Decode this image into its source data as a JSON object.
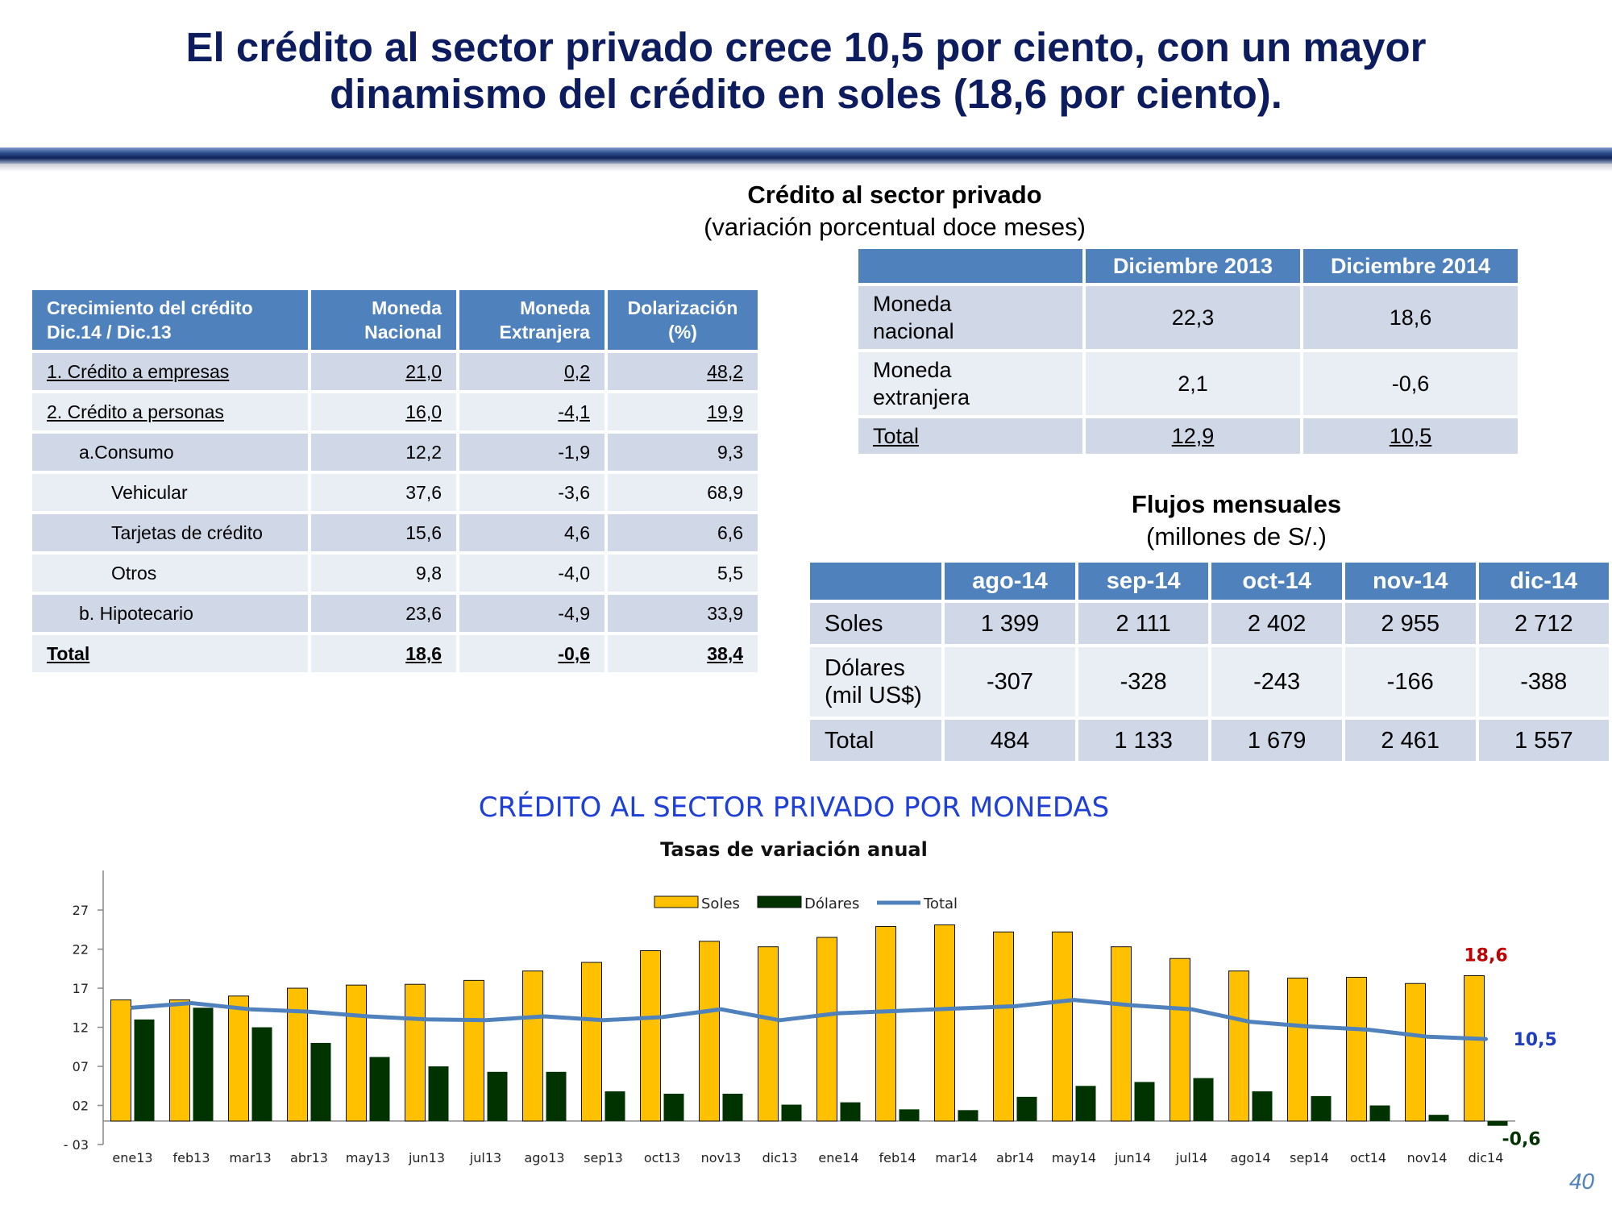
{
  "title": {
    "line1": "El crédito al sector privado crece 10,5 por ciento, con un mayor",
    "line2": "dinamismo del crédito en soles (18,6 por ciento)."
  },
  "growth_table": {
    "headers": [
      "Crecimiento del crédito\nDic.14 / Dic.13",
      "Moneda\nNacional",
      "Moneda\nExtranjera",
      "Dolarización\n(%)"
    ],
    "rows": [
      {
        "label": "1. Crédito a empresas",
        "mn": "21,0",
        "me": "0,2",
        "dol": "48,2"
      },
      {
        "label": "2. Crédito a personas",
        "mn": "16,0",
        "me": "-4,1",
        "dol": "19,9"
      },
      {
        "label": "a.Consumo",
        "mn": "12,2",
        "me": "-1,9",
        "dol": "9,3"
      },
      {
        "label": "Vehicular",
        "mn": "37,6",
        "me": "-3,6",
        "dol": "68,9"
      },
      {
        "label": "Tarjetas de crédito",
        "mn": "15,6",
        "me": "4,6",
        "dol": "6,6"
      },
      {
        "label": "Otros",
        "mn": "9,8",
        "me": "-4,0",
        "dol": "5,5"
      },
      {
        "label": "b. Hipotecario",
        "mn": "23,6",
        "me": "-4,9",
        "dol": "33,9"
      },
      {
        "label": "Total",
        "mn": "18,6",
        "me": "-0,6",
        "dol": "38,4"
      }
    ]
  },
  "rate_table": {
    "title": "Crédito al sector privado",
    "subtitle": "(variación porcentual doce meses)",
    "headers": [
      "",
      "Diciembre 2013",
      "Diciembre 2014"
    ],
    "rows": [
      {
        "label": "Moneda\nnacional",
        "v1": "22,3",
        "v2": "18,6"
      },
      {
        "label": "Moneda\nextranjera",
        "v1": "2,1",
        "v2": "-0,6"
      },
      {
        "label": "Total",
        "v1": "12,9",
        "v2": "10,5"
      }
    ]
  },
  "flow_table": {
    "title": "Flujos mensuales",
    "subtitle": "(millones de S/.)",
    "headers": [
      "",
      "ago-14",
      "sep-14",
      "oct-14",
      "nov-14",
      "dic-14"
    ],
    "rows": [
      {
        "label": "Soles",
        "values": [
          "1 399",
          "2 111",
          "2 402",
          "2 955",
          "2 712"
        ]
      },
      {
        "label": "Dólares\n(mil US$)",
        "values": [
          "-307",
          "-328",
          "-243",
          "-166",
          "-388"
        ]
      },
      {
        "label": "Total",
        "values": [
          "484",
          "1 133",
          "1 679",
          "2 461",
          "1 557"
        ]
      }
    ]
  },
  "chart_data": {
    "type": "bar",
    "title": "CRÉDITO AL SECTOR PRIVADO POR MONEDAS",
    "subtitle": "Tasas de variación anual",
    "categories": [
      "ene13",
      "feb13",
      "mar13",
      "abr13",
      "may13",
      "jun13",
      "jul13",
      "ago13",
      "sep13",
      "oct13",
      "nov13",
      "dic13",
      "ene14",
      "feb14",
      "mar14",
      "abr14",
      "may14",
      "jun14",
      "jul14",
      "ago14",
      "sep14",
      "oct14",
      "nov14",
      "dic14"
    ],
    "series": [
      {
        "name": "Soles",
        "type": "bar",
        "color": "#ffc000",
        "values": [
          15.5,
          15.5,
          16.0,
          17.0,
          17.4,
          17.5,
          18.0,
          19.2,
          20.3,
          21.8,
          23.0,
          22.3,
          23.5,
          24.9,
          25.1,
          24.2,
          24.2,
          22.3,
          20.8,
          19.2,
          18.3,
          18.4,
          17.6,
          18.6
        ]
      },
      {
        "name": "Dólares",
        "type": "bar",
        "color": "#003300",
        "values": [
          13.0,
          14.5,
          12.0,
          10.0,
          8.2,
          7.0,
          6.3,
          6.3,
          3.8,
          3.5,
          3.5,
          2.1,
          2.4,
          1.5,
          1.4,
          3.1,
          4.5,
          5.0,
          5.5,
          3.8,
          3.2,
          2.0,
          0.8,
          -0.6
        ]
      },
      {
        "name": "Total",
        "type": "line",
        "color": "#4f81bd",
        "values": [
          14.5,
          15.1,
          14.3,
          14.0,
          13.4,
          13.0,
          12.9,
          13.4,
          12.9,
          13.3,
          14.3,
          12.9,
          13.8,
          14.1,
          14.4,
          14.7,
          15.5,
          14.8,
          14.3,
          12.7,
          12.1,
          11.7,
          10.8,
          10.5
        ]
      }
    ],
    "ylim": [
      -3,
      30
    ],
    "yticks": [
      -3,
      2,
      7,
      12,
      17,
      22,
      27
    ],
    "ytick_labels": [
      "- 03",
      "02",
      "07",
      "12",
      "17",
      "22",
      "27"
    ],
    "legend_position": "top-center",
    "annotations": [
      {
        "text": "18,6",
        "color": "#c00000"
      },
      {
        "text": "10,5",
        "color": "#1f3fbf"
      },
      {
        "text": "-0,6",
        "color": "#003300"
      }
    ]
  },
  "page_number": "40"
}
